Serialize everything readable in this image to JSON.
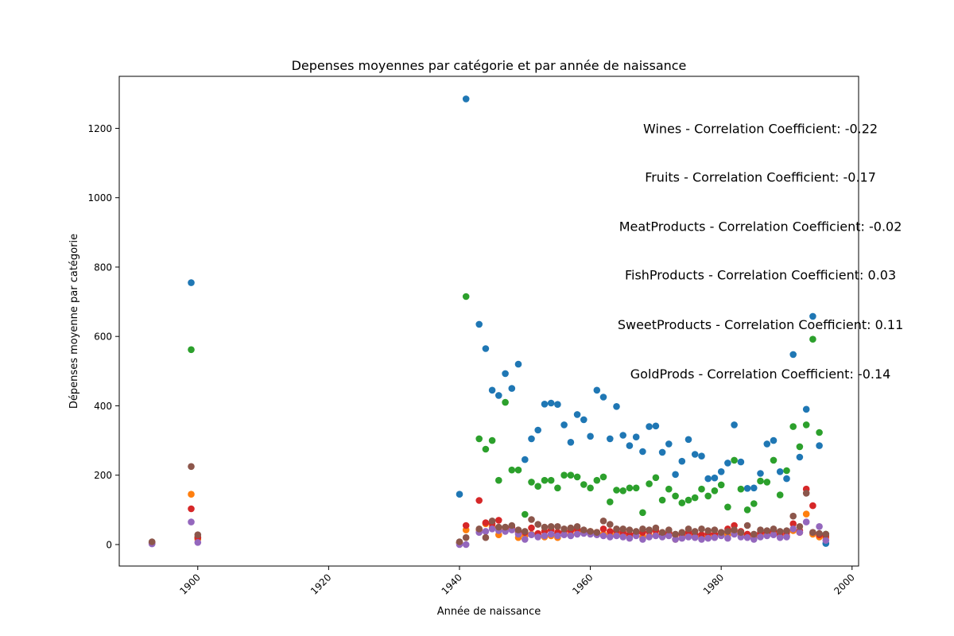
{
  "chart_data": {
    "type": "scatter",
    "title": "Depenses moyennes par catégorie et par année de naissance",
    "xlabel": "Année de naissance",
    "ylabel": "Dépenses moyenne par catégorie",
    "xlim": [
      1888,
      2001
    ],
    "ylim": [
      -62,
      1350
    ],
    "xticks": [
      1900,
      1920,
      1940,
      1960,
      1980,
      2000
    ],
    "yticks": [
      0,
      200,
      400,
      600,
      800,
      1000,
      1200
    ],
    "grid": false,
    "legend": "none",
    "annotations": [
      {
        "text": "Wines - Correlation Coefficient: -0.22",
        "x": 1986,
        "y": 1200
      },
      {
        "text": "Fruits - Correlation Coefficient: -0.17",
        "x": 1986,
        "y": 1060
      },
      {
        "text": "MeatProducts - Correlation Coefficient: -0.02",
        "x": 1986,
        "y": 918
      },
      {
        "text": "FishProducts - Correlation Coefficient: 0.03",
        "x": 1986,
        "y": 778
      },
      {
        "text": "SweetProducts - Correlation Coefficient: 0.11",
        "x": 1986,
        "y": 635
      },
      {
        "text": "GoldProds - Correlation Coefficient: -0.14",
        "x": 1986,
        "y": 493
      }
    ],
    "series": [
      {
        "color": "#1f77b4",
        "x": [
          1893,
          1899,
          1900,
          1940,
          1941,
          1943,
          1944,
          1945,
          1946,
          1947,
          1948,
          1949,
          1950,
          1951,
          1952,
          1953,
          1954,
          1955,
          1956,
          1957,
          1958,
          1959,
          1960,
          1961,
          1962,
          1963,
          1964,
          1965,
          1966,
          1967,
          1968,
          1969,
          1970,
          1971,
          1972,
          1973,
          1974,
          1975,
          1976,
          1977,
          1978,
          1979,
          1980,
          1981,
          1982,
          1983,
          1984,
          1985,
          1986,
          1987,
          1988,
          1989,
          1990,
          1991,
          1992,
          1993,
          1994,
          1995,
          1996
        ],
        "y": [
          5,
          755,
          20,
          145,
          1285,
          635,
          565,
          445,
          430,
          493,
          450,
          520,
          245,
          305,
          330,
          405,
          408,
          404,
          345,
          295,
          375,
          360,
          312,
          445,
          425,
          305,
          398,
          315,
          285,
          310,
          268,
          340,
          342,
          266,
          290,
          202,
          240,
          303,
          260,
          255,
          190,
          192,
          210,
          235,
          345,
          238,
          162,
          163,
          205,
          290,
          300,
          210,
          190,
          548,
          252,
          390,
          658,
          285,
          3
        ]
      },
      {
        "color": "#ff7f0e",
        "x": [
          1893,
          1899,
          1900,
          1940,
          1941,
          1943,
          1944,
          1945,
          1946,
          1947,
          1948,
          1949,
          1950,
          1951,
          1952,
          1953,
          1954,
          1955,
          1956,
          1957,
          1958,
          1959,
          1960,
          1961,
          1962,
          1963,
          1964,
          1965,
          1966,
          1967,
          1968,
          1969,
          1970,
          1971,
          1972,
          1973,
          1974,
          1975,
          1976,
          1977,
          1978,
          1979,
          1980,
          1981,
          1982,
          1983,
          1984,
          1985,
          1986,
          1987,
          1988,
          1989,
          1990,
          1991,
          1992,
          1993,
          1994,
          1995,
          1996
        ],
        "y": [
          3,
          145,
          15,
          5,
          42,
          42,
          60,
          50,
          28,
          42,
          45,
          20,
          25,
          30,
          28,
          22,
          25,
          20,
          30,
          28,
          40,
          35,
          38,
          35,
          30,
          28,
          32,
          28,
          25,
          30,
          22,
          25,
          28,
          25,
          30,
          15,
          20,
          25,
          22,
          20,
          22,
          25,
          30,
          28,
          35,
          30,
          25,
          20,
          28,
          30,
          35,
          28,
          25,
          40,
          35,
          88,
          30,
          22,
          20
        ]
      },
      {
        "color": "#2ca02c",
        "x": [
          1893,
          1899,
          1900,
          1940,
          1941,
          1943,
          1944,
          1945,
          1946,
          1947,
          1948,
          1949,
          1950,
          1951,
          1952,
          1953,
          1954,
          1955,
          1956,
          1957,
          1958,
          1959,
          1960,
          1961,
          1962,
          1963,
          1964,
          1965,
          1966,
          1967,
          1968,
          1969,
          1970,
          1971,
          1972,
          1973,
          1974,
          1975,
          1976,
          1977,
          1978,
          1979,
          1980,
          1981,
          1982,
          1983,
          1984,
          1985,
          1986,
          1987,
          1988,
          1989,
          1990,
          1991,
          1992,
          1993,
          1994,
          1995,
          1996
        ],
        "y": [
          5,
          562,
          20,
          5,
          715,
          305,
          275,
          300,
          185,
          410,
          215,
          215,
          87,
          180,
          168,
          185,
          185,
          163,
          200,
          200,
          195,
          173,
          163,
          185,
          195,
          123,
          157,
          155,
          163,
          163,
          92,
          175,
          193,
          128,
          160,
          140,
          120,
          128,
          135,
          160,
          140,
          155,
          172,
          108,
          243,
          160,
          100,
          118,
          183,
          180,
          243,
          143,
          213,
          340,
          282,
          345,
          592,
          323,
          30
        ]
      },
      {
        "color": "#d62728",
        "x": [
          1893,
          1899,
          1900,
          1940,
          1941,
          1943,
          1944,
          1945,
          1946,
          1947,
          1948,
          1949,
          1950,
          1951,
          1952,
          1953,
          1954,
          1955,
          1956,
          1957,
          1958,
          1959,
          1960,
          1961,
          1962,
          1963,
          1964,
          1965,
          1966,
          1967,
          1968,
          1969,
          1970,
          1971,
          1972,
          1973,
          1974,
          1975,
          1976,
          1977,
          1978,
          1979,
          1980,
          1981,
          1982,
          1983,
          1984,
          1985,
          1986,
          1987,
          1988,
          1989,
          1990,
          1991,
          1992,
          1993,
          1994,
          1995,
          1996
        ],
        "y": [
          5,
          103,
          20,
          5,
          55,
          127,
          63,
          60,
          70,
          48,
          50,
          35,
          35,
          48,
          32,
          38,
          42,
          35,
          38,
          40,
          45,
          38,
          35,
          35,
          45,
          38,
          40,
          35,
          30,
          32,
          35,
          38,
          40,
          30,
          35,
          28,
          30,
          35,
          30,
          28,
          32,
          30,
          35,
          45,
          55,
          38,
          30,
          28,
          35,
          35,
          40,
          30,
          35,
          60,
          40,
          160,
          112,
          28,
          25
        ]
      },
      {
        "color": "#9467bd",
        "x": [
          1893,
          1899,
          1900,
          1940,
          1941,
          1943,
          1944,
          1945,
          1946,
          1947,
          1948,
          1949,
          1950,
          1951,
          1952,
          1953,
          1954,
          1955,
          1956,
          1957,
          1958,
          1959,
          1960,
          1961,
          1962,
          1963,
          1964,
          1965,
          1966,
          1967,
          1968,
          1969,
          1970,
          1971,
          1972,
          1973,
          1974,
          1975,
          1976,
          1977,
          1978,
          1979,
          1980,
          1981,
          1982,
          1983,
          1984,
          1985,
          1986,
          1987,
          1988,
          1989,
          1990,
          1991,
          1992,
          1993,
          1994,
          1995,
          1996
        ],
        "y": [
          2,
          65,
          6,
          0,
          0,
          35,
          38,
          45,
          40,
          38,
          42,
          30,
          15,
          28,
          22,
          25,
          30,
          25,
          28,
          25,
          30,
          32,
          30,
          28,
          25,
          22,
          25,
          22,
          18,
          25,
          15,
          22,
          25,
          22,
          25,
          15,
          18,
          22,
          20,
          15,
          18,
          20,
          25,
          18,
          30,
          22,
          20,
          15,
          22,
          25,
          28,
          20,
          22,
          45,
          35,
          65,
          35,
          52,
          12
        ]
      },
      {
        "color": "#8c564b",
        "x": [
          1893,
          1899,
          1900,
          1940,
          1941,
          1943,
          1944,
          1945,
          1946,
          1947,
          1948,
          1949,
          1950,
          1951,
          1952,
          1953,
          1954,
          1955,
          1956,
          1957,
          1958,
          1959,
          1960,
          1961,
          1962,
          1963,
          1964,
          1965,
          1966,
          1967,
          1968,
          1969,
          1970,
          1971,
          1972,
          1973,
          1974,
          1975,
          1976,
          1977,
          1978,
          1979,
          1980,
          1981,
          1982,
          1983,
          1984,
          1985,
          1986,
          1987,
          1988,
          1989,
          1990,
          1991,
          1992,
          1993,
          1994,
          1995,
          1996
        ],
        "y": [
          8,
          225,
          28,
          8,
          20,
          45,
          20,
          68,
          50,
          50,
          55,
          42,
          38,
          72,
          58,
          50,
          52,
          52,
          45,
          48,
          52,
          42,
          38,
          35,
          68,
          58,
          45,
          45,
          42,
          38,
          45,
          42,
          48,
          35,
          42,
          30,
          35,
          45,
          38,
          45,
          40,
          42,
          35,
          38,
          42,
          35,
          55,
          30,
          42,
          40,
          45,
          38,
          40,
          82,
          52,
          148,
          35,
          32,
          30
        ]
      }
    ]
  }
}
